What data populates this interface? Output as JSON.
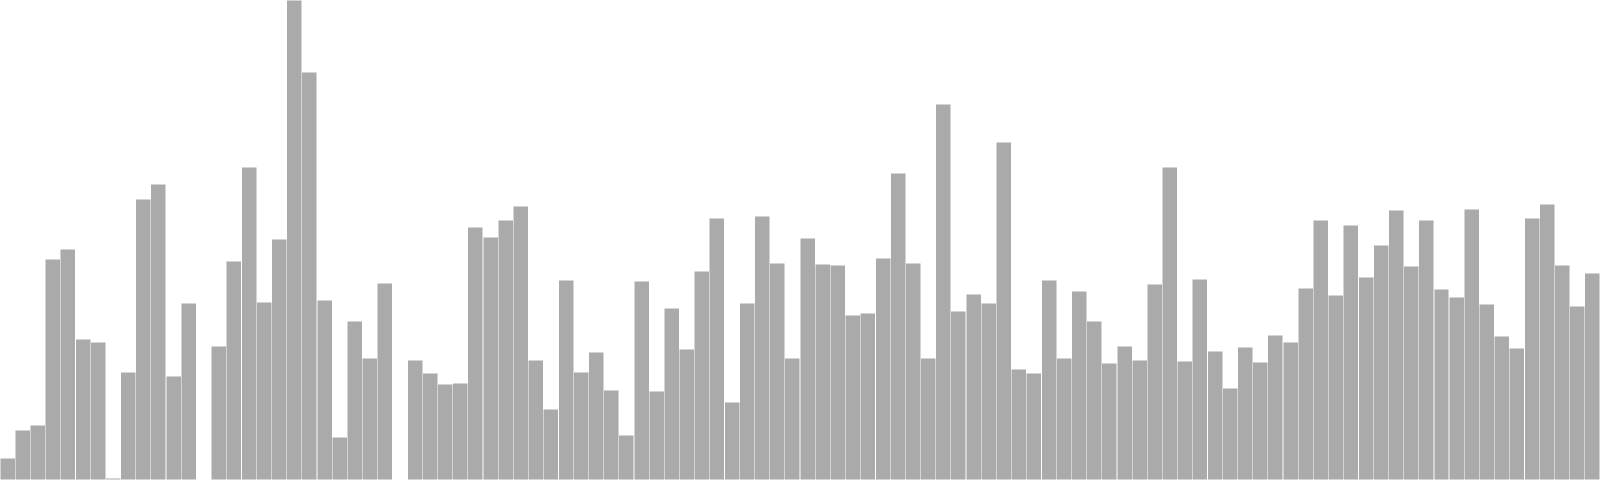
{
  "chart_data": {
    "type": "bar",
    "title": "",
    "xlabel": "",
    "ylabel": "",
    "ylim": [
      0,
      480
    ],
    "grid": false,
    "legend": "none",
    "bar_color": "#aaaaaa",
    "bar_stroke": "#ffffff",
    "background": "#ffffff",
    "values": [
      22,
      50,
      55,
      221,
      231,
      141,
      138,
      2,
      108,
      281,
      296,
      104,
      177,
      0,
      134,
      219,
      313,
      178,
      241,
      480,
      408,
      180,
      43,
      159,
      122,
      197,
      0,
      120,
      107,
      96,
      97,
      253,
      243,
      260,
      274,
      120,
      71,
      200,
      108,
      128,
      90,
      45,
      199,
      89,
      172,
      131,
      209,
      262,
      78,
      177,
      264,
      217,
      122,
      242,
      216,
      215,
      165,
      167,
      222,
      307,
      217,
      122,
      376,
      169,
      186,
      177,
      338,
      111,
      107,
      200,
      122,
      189,
      159,
      117,
      134,
      120,
      196,
      313,
      119,
      201,
      129,
      92,
      133,
      118,
      145,
      138,
      192,
      260,
      185,
      255,
      203,
      235,
      270,
      214,
      260,
      191,
      183,
      271,
      176,
      144,
      132,
      262,
      276,
      215,
      174,
      207
    ]
  }
}
